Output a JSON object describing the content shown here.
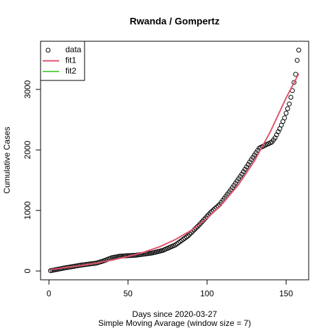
{
  "chart_data": {
    "type": "scatter",
    "title": "Rwanda / Gompertz",
    "xlabel": "Days since 2020-03-27",
    "subtitle": "Simple Moving Avarage (window size = 7)",
    "ylabel": "Cumulative Cases",
    "xlim": [
      -5.28,
      164.28
    ],
    "xticks": [
      0,
      50,
      100,
      150
    ],
    "ylim": [
      -146,
      3796
    ],
    "yticks": [
      0,
      1000,
      2000,
      3000
    ],
    "legend": "topleft",
    "series": [
      {
        "name": "data",
        "color": "#000000",
        "style": "points",
        "x": [
          1,
          2,
          3,
          4,
          5,
          6,
          7,
          8,
          9,
          10,
          11,
          12,
          13,
          14,
          15,
          16,
          17,
          18,
          19,
          20,
          21,
          22,
          23,
          24,
          25,
          26,
          27,
          28,
          29,
          30,
          31,
          32,
          33,
          34,
          35,
          36,
          37,
          38,
          39,
          40,
          41,
          42,
          43,
          44,
          45,
          46,
          47,
          48,
          49,
          50,
          51,
          52,
          53,
          54,
          55,
          56,
          57,
          58,
          59,
          60,
          61,
          62,
          63,
          64,
          65,
          66,
          67,
          68,
          69,
          70,
          71,
          72,
          73,
          74,
          75,
          76,
          77,
          78,
          79,
          80,
          81,
          82,
          83,
          84,
          85,
          86,
          87,
          88,
          89,
          90,
          91,
          92,
          93,
          94,
          95,
          96,
          97,
          98,
          99,
          100,
          101,
          102,
          103,
          104,
          105,
          106,
          107,
          108,
          109,
          110,
          111,
          112,
          113,
          114,
          115,
          116,
          117,
          118,
          119,
          120,
          121,
          122,
          123,
          124,
          125,
          126,
          127,
          128,
          129,
          130,
          131,
          132,
          133,
          134,
          135,
          136,
          137,
          138,
          139,
          140,
          141,
          142,
          143,
          144,
          145,
          146,
          147,
          148,
          149,
          150,
          151,
          152,
          153,
          154,
          155,
          156,
          157,
          158
        ],
        "values": [
          5,
          10,
          15,
          20,
          25,
          30,
          35,
          40,
          45,
          50,
          55,
          59,
          64,
          68,
          73,
          77,
          82,
          86,
          91,
          95,
          99,
          102,
          106,
          109,
          113,
          116,
          120,
          123,
          127,
          130,
          138,
          146,
          154,
          162,
          170,
          180,
          190,
          200,
          210,
          220,
          225,
          230,
          235,
          240,
          245,
          247,
          248,
          250,
          251,
          253,
          254,
          256,
          257,
          259,
          260,
          264,
          267,
          271,
          274,
          278,
          281,
          285,
          288,
          292,
          295,
          301,
          308,
          314,
          321,
          327,
          334,
          340,
          351,
          363,
          374,
          385,
          396,
          408,
          419,
          430,
          449,
          468,
          486,
          505,
          524,
          543,
          561,
          580,
          606,
          631,
          657,
          683,
          709,
          734,
          760,
          789,
          817,
          846,
          874,
          903,
          931,
          960,
          983,
          1007,
          1030,
          1053,
          1077,
          1100,
          1134,
          1169,
          1203,
          1237,
          1271,
          1306,
          1340,
          1377,
          1414,
          1451,
          1489,
          1526,
          1563,
          1600,
          1640,
          1680,
          1720,
          1760,
          1800,
          1840,
          1878,
          1916,
          1954,
          1992,
          2030,
          2043,
          2055,
          2068,
          2080,
          2093,
          2105,
          2118,
          2130,
          2165,
          2200,
          2250,
          2300,
          2350,
          2410,
          2470,
          2530,
          2607,
          2683,
          2760,
          2870,
          2980,
          3115,
          3250,
          3480,
          3650
        ]
      },
      {
        "name": "fit1",
        "color": "#df536b",
        "style": "line",
        "x": [
          1,
          10,
          20,
          30,
          40,
          50,
          60,
          70,
          80,
          90,
          100,
          110,
          120,
          130,
          140,
          150,
          158
        ],
        "values": [
          25,
          55,
          90,
          130,
          180,
          240,
          310,
          400,
          520,
          670,
          870,
          1120,
          1430,
          1820,
          2300,
          2860,
          3260
        ]
      },
      {
        "name": "fit2",
        "color": "#61d04f",
        "style": "line",
        "x": [],
        "values": []
      }
    ]
  }
}
